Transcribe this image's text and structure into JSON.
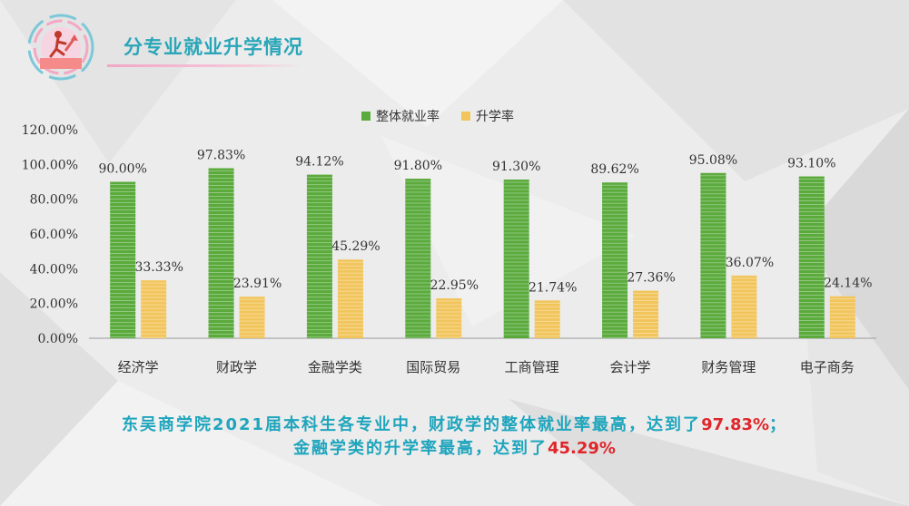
{
  "header": {
    "title": "分专业就业升学情况"
  },
  "chart_data": {
    "type": "bar",
    "title": "",
    "xlabel": "",
    "ylabel": "",
    "categories": [
      "经济学",
      "财政学",
      "金融学类",
      "国际贸易",
      "工商管理",
      "会计学",
      "财务管理",
      "电子商务"
    ],
    "series": [
      {
        "name": "整体就业率",
        "values": [
          90.0,
          97.83,
          94.12,
          91.8,
          91.3,
          89.62,
          95.08,
          93.1
        ],
        "labels": [
          "90.00%",
          "97.83%",
          "94.12%",
          "91.80%",
          "91.30%",
          "89.62%",
          "95.08%",
          "93.10%"
        ],
        "color": "#5aaa3c"
      },
      {
        "name": "升学率",
        "values": [
          33.33,
          23.91,
          45.29,
          22.95,
          21.74,
          27.36,
          36.07,
          24.14
        ],
        "labels": [
          "33.33%",
          "23.91%",
          "45.29%",
          "22.95%",
          "21.74%",
          "27.36%",
          "36.07%",
          "24.14%"
        ],
        "color": "#f2c55c"
      }
    ],
    "ylim": [
      0,
      120
    ],
    "yticks": [
      "0.00%",
      "20.00%",
      "40.00%",
      "60.00%",
      "80.00%",
      "100.00%",
      "120.00%"
    ],
    "legend_position": "top-center",
    "grid": false
  },
  "summary": {
    "line1_prefix": "东吴商学院2021届本科生各专业中，财政学的整体就业率最高，达到了",
    "line1_highlight": "97.83%",
    "line1_suffix": "；",
    "line2_prefix": "金融学类的升学率最高，达到了",
    "line2_highlight": "45.29%"
  }
}
